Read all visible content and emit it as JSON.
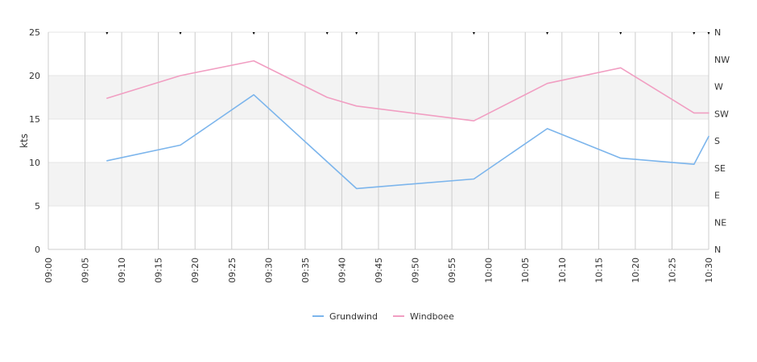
{
  "chart_data": {
    "type": "line",
    "ylabel": "kts",
    "ylim": [
      0,
      25
    ],
    "y_ticks": [
      "0",
      "5",
      "10",
      "15",
      "20",
      "25"
    ],
    "y_right_ticks": [
      "N",
      "NE",
      "E",
      "SE",
      "S",
      "SW",
      "W",
      "NW",
      "N"
    ],
    "x_range": [
      "09:00",
      "10:30"
    ],
    "x_ticks": [
      "09:00",
      "09:05",
      "09:10",
      "09:15",
      "09:20",
      "09:25",
      "09:30",
      "09:35",
      "09:40",
      "09:45",
      "09:50",
      "09:55",
      "10:00",
      "10:05",
      "10:10",
      "10:15",
      "10:20",
      "10:25",
      "10:30"
    ],
    "grid": "vertical lines, alternating horizontal bands",
    "legend": "bottom-center",
    "series": [
      {
        "name": "Grundwind",
        "color": "#7cb5ec",
        "points": [
          {
            "x": "09:08",
            "y": 10.2
          },
          {
            "x": "09:18",
            "y": 12.0
          },
          {
            "x": "09:28",
            "y": 17.8
          },
          {
            "x": "09:42",
            "y": 7.0
          },
          {
            "x": "09:58",
            "y": 8.1
          },
          {
            "x": "10:08",
            "y": 13.9
          },
          {
            "x": "10:18",
            "y": 10.5
          },
          {
            "x": "10:28",
            "y": 9.8
          },
          {
            "x": "10:30",
            "y": 13.0
          }
        ]
      },
      {
        "name": "Windboee",
        "color": "#f19ec2",
        "points": [
          {
            "x": "09:08",
            "y": 17.4
          },
          {
            "x": "09:18",
            "y": 20.0
          },
          {
            "x": "09:28",
            "y": 21.7
          },
          {
            "x": "09:38",
            "y": 17.5
          },
          {
            "x": "09:42",
            "y": 16.5
          },
          {
            "x": "09:58",
            "y": 14.8
          },
          {
            "x": "10:08",
            "y": 19.1
          },
          {
            "x": "10:18",
            "y": 20.9
          },
          {
            "x": "10:28",
            "y": 15.7
          },
          {
            "x": "10:30",
            "y": 15.7
          }
        ]
      }
    ],
    "direction_markers": [
      {
        "x": "09:08",
        "dir": "N"
      },
      {
        "x": "09:18",
        "dir": "N"
      },
      {
        "x": "09:28",
        "dir": "N"
      },
      {
        "x": "09:38",
        "dir": "N"
      },
      {
        "x": "09:42",
        "dir": "N"
      },
      {
        "x": "09:58",
        "dir": "N"
      },
      {
        "x": "10:08",
        "dir": "N"
      },
      {
        "x": "10:18",
        "dir": "N"
      },
      {
        "x": "10:28",
        "dir": "N"
      },
      {
        "x": "10:30",
        "dir": "N"
      }
    ]
  }
}
